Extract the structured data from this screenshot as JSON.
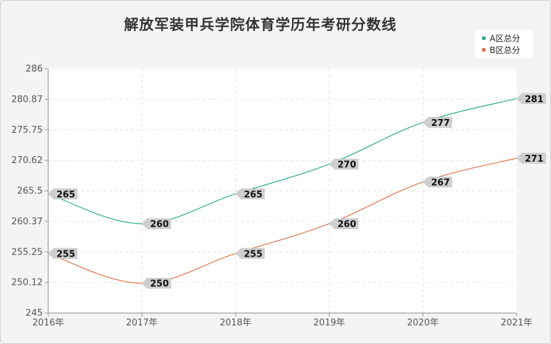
{
  "chart_data": {
    "type": "line",
    "title": "解放军装甲兵学院体育学历年考研分数线",
    "categories": [
      "2016年",
      "2017年",
      "2018年",
      "2019年",
      "2020年",
      "2021年"
    ],
    "y_ticks": [
      "286",
      "280.87",
      "275.75",
      "270.62",
      "265.5",
      "260.37",
      "255.25",
      "250.12",
      "245"
    ],
    "ylim": [
      245,
      286
    ],
    "grid": true,
    "legend_position": "top-right",
    "series": [
      {
        "name": "A区总分",
        "values": [
          265,
          260,
          265,
          270,
          277,
          281
        ],
        "color": "#2aa887"
      },
      {
        "name": "B区总分",
        "values": [
          255,
          250,
          255,
          260,
          267,
          271
        ],
        "color": "#e0704a"
      }
    ]
  }
}
